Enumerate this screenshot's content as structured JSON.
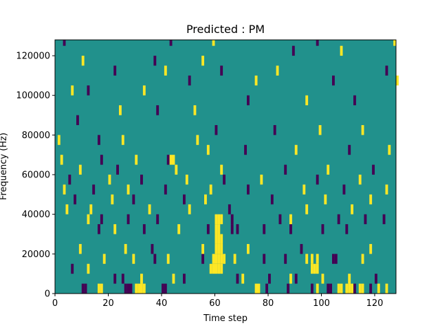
{
  "chart_data": {
    "type": "heatmap",
    "title": "Predicted : PM",
    "xlabel": "Time step",
    "ylabel": "Frequency (Hz)",
    "xlim": [
      0,
      128
    ],
    "ylim": [
      0,
      128000
    ],
    "x_ticks": [
      0,
      20,
      40,
      60,
      80,
      100,
      120
    ],
    "y_ticks": [
      0,
      20000,
      40000,
      60000,
      80000,
      100000,
      120000
    ],
    "x_tick_labels": [
      "0",
      "20",
      "40",
      "60",
      "80",
      "100",
      "120"
    ],
    "y_tick_labels": [
      "0",
      "20000",
      "40000",
      "60000",
      "80000",
      "100000",
      "120000"
    ],
    "grid": false,
    "legend": "none",
    "background_value": 0,
    "value_levels": [
      -1,
      0,
      1
    ],
    "colors": {
      "low": "#440154",
      "mid": "#21918c",
      "high": "#fde725"
    },
    "cells": [
      {
        "t": 16,
        "f": 0,
        "v": 1
      },
      {
        "t": 17,
        "f": 0,
        "v": 1
      },
      {
        "t": 30,
        "f": 0,
        "v": 1
      },
      {
        "t": 31,
        "f": 0,
        "v": 1
      },
      {
        "t": 32,
        "f": 0,
        "v": 1
      },
      {
        "t": 33,
        "f": 0,
        "v": 1
      },
      {
        "t": 26,
        "f": 0,
        "v": -1
      },
      {
        "t": 27,
        "f": 0,
        "v": -1
      },
      {
        "t": 28,
        "f": 0,
        "v": -1
      },
      {
        "t": 10,
        "f": 0,
        "v": -1
      },
      {
        "t": 11,
        "f": 0,
        "v": -1
      },
      {
        "t": 40,
        "f": 0,
        "v": -1
      },
      {
        "t": 41,
        "f": 0,
        "v": -1
      },
      {
        "t": 75,
        "f": 0,
        "v": 1
      },
      {
        "t": 76,
        "f": 0,
        "v": 1
      },
      {
        "t": 79,
        "f": 0,
        "v": -1
      },
      {
        "t": 87,
        "f": 0,
        "v": -1
      },
      {
        "t": 96,
        "f": 0,
        "v": -1
      },
      {
        "t": 98,
        "f": 0,
        "v": 1
      },
      {
        "t": 102,
        "f": 0,
        "v": -1
      },
      {
        "t": 103,
        "f": 0,
        "v": -1
      },
      {
        "t": 106,
        "f": 0,
        "v": 1
      },
      {
        "t": 107,
        "f": 0,
        "v": 1
      },
      {
        "t": 109,
        "f": 0,
        "v": 1
      },
      {
        "t": 110,
        "f": 0,
        "v": 1
      },
      {
        "t": 111,
        "f": 0,
        "v": 1
      },
      {
        "t": 112,
        "f": 0,
        "v": -1
      },
      {
        "t": 114,
        "f": 0,
        "v": 1
      },
      {
        "t": 115,
        "f": 0,
        "v": 1
      },
      {
        "t": 118,
        "f": 0,
        "v": -1
      },
      {
        "t": 121,
        "f": 0,
        "v": 1
      },
      {
        "t": 124,
        "f": 0,
        "v": 1
      },
      {
        "t": 58,
        "f": 10,
        "v": 1
      },
      {
        "t": 59,
        "f": 10,
        "v": 1
      },
      {
        "t": 60,
        "f": 10,
        "v": 1
      },
      {
        "t": 61,
        "f": 10,
        "v": 1
      },
      {
        "t": 62,
        "f": 10,
        "v": 1
      },
      {
        "t": 59,
        "f": 15,
        "v": 1
      },
      {
        "t": 60,
        "f": 15,
        "v": 1
      },
      {
        "t": 61,
        "f": 15,
        "v": 1
      },
      {
        "t": 62,
        "f": 15,
        "v": 1
      },
      {
        "t": 63,
        "f": 15,
        "v": 1
      },
      {
        "t": 60,
        "f": 20,
        "v": 1
      },
      {
        "t": 61,
        "f": 20,
        "v": 1
      },
      {
        "t": 62,
        "f": 20,
        "v": 1
      },
      {
        "t": 60,
        "f": 25,
        "v": 1
      },
      {
        "t": 61,
        "f": 25,
        "v": 1
      },
      {
        "t": 62,
        "f": 25,
        "v": 1
      },
      {
        "t": 60,
        "f": 30,
        "v": 1
      },
      {
        "t": 61,
        "f": 30,
        "v": 1
      },
      {
        "t": 60,
        "f": 35,
        "v": 1
      },
      {
        "t": 61,
        "f": 35,
        "v": 1
      },
      {
        "t": 62,
        "f": 35,
        "v": 1
      },
      {
        "t": 96,
        "f": 10,
        "v": 1
      },
      {
        "t": 97,
        "f": 10,
        "v": 1
      },
      {
        "t": 98,
        "f": 15,
        "v": 1
      },
      {
        "t": 98,
        "f": 10,
        "v": 1
      },
      {
        "t": 96,
        "f": 15,
        "v": 1
      },
      {
        "t": 104,
        "f": 15,
        "v": -1
      },
      {
        "t": 105,
        "f": 15,
        "v": -1
      },
      {
        "t": 22,
        "f": 5,
        "v": -1
      },
      {
        "t": 25,
        "f": 5,
        "v": -1
      },
      {
        "t": 32,
        "f": 5,
        "v": 1
      },
      {
        "t": 44,
        "f": 5,
        "v": 1
      },
      {
        "t": 48,
        "f": 5,
        "v": -1
      },
      {
        "t": 68,
        "f": 5,
        "v": -1
      },
      {
        "t": 70,
        "f": 5,
        "v": 1
      },
      {
        "t": 80,
        "f": 5,
        "v": -1
      },
      {
        "t": 88,
        "f": 5,
        "v": 1
      },
      {
        "t": 90,
        "f": 5,
        "v": -1
      },
      {
        "t": 100,
        "f": 5,
        "v": 1
      },
      {
        "t": 110,
        "f": 5,
        "v": 1
      },
      {
        "t": 120,
        "f": 5,
        "v": -1
      },
      {
        "t": 6,
        "f": 10,
        "v": -1
      },
      {
        "t": 12,
        "f": 10,
        "v": 1
      },
      {
        "t": 18,
        "f": 15,
        "v": 1
      },
      {
        "t": 29,
        "f": 15,
        "v": 1
      },
      {
        "t": 37,
        "f": 15,
        "v": -1
      },
      {
        "t": 42,
        "f": 15,
        "v": 1
      },
      {
        "t": 55,
        "f": 15,
        "v": -1
      },
      {
        "t": 67,
        "f": 15,
        "v": 1
      },
      {
        "t": 78,
        "f": 15,
        "v": -1
      },
      {
        "t": 86,
        "f": 15,
        "v": -1
      },
      {
        "t": 94,
        "f": 15,
        "v": 1
      },
      {
        "t": 115,
        "f": 15,
        "v": 1
      },
      {
        "t": 9,
        "f": 20,
        "v": 1
      },
      {
        "t": 26,
        "f": 20,
        "v": 1
      },
      {
        "t": 36,
        "f": 20,
        "v": -1
      },
      {
        "t": 55,
        "f": 20,
        "v": 1
      },
      {
        "t": 72,
        "f": 20,
        "v": 1
      },
      {
        "t": 92,
        "f": 20,
        "v": -1
      },
      {
        "t": 118,
        "f": 20,
        "v": 1
      },
      {
        "t": 16,
        "f": 30,
        "v": -1
      },
      {
        "t": 22,
        "f": 30,
        "v": 1
      },
      {
        "t": 33,
        "f": 30,
        "v": -1
      },
      {
        "t": 46,
        "f": 30,
        "v": 1
      },
      {
        "t": 57,
        "f": 30,
        "v": -1
      },
      {
        "t": 66,
        "f": 30,
        "v": -1
      },
      {
        "t": 68,
        "f": 30,
        "v": -1
      },
      {
        "t": 78,
        "f": 30,
        "v": -1
      },
      {
        "t": 88,
        "f": 30,
        "v": -1
      },
      {
        "t": 100,
        "f": 30,
        "v": -1
      },
      {
        "t": 109,
        "f": 30,
        "v": -1
      },
      {
        "t": 12,
        "f": 35,
        "v": 1
      },
      {
        "t": 17,
        "f": 35,
        "v": -1
      },
      {
        "t": 27,
        "f": 35,
        "v": -1
      },
      {
        "t": 38,
        "f": 35,
        "v": -1
      },
      {
        "t": 66,
        "f": 35,
        "v": -1
      },
      {
        "t": 84,
        "f": 35,
        "v": -1
      },
      {
        "t": 88,
        "f": 35,
        "v": 1
      },
      {
        "t": 106,
        "f": 35,
        "v": -1
      },
      {
        "t": 116,
        "f": 35,
        "v": -1
      },
      {
        "t": 123,
        "f": 35,
        "v": -1
      },
      {
        "t": 4,
        "f": 40,
        "v": 1
      },
      {
        "t": 13,
        "f": 40,
        "v": 1
      },
      {
        "t": 35,
        "f": 40,
        "v": 1
      },
      {
        "t": 50,
        "f": 40,
        "v": 1
      },
      {
        "t": 65,
        "f": 40,
        "v": -1
      },
      {
        "t": 94,
        "f": 40,
        "v": 1
      },
      {
        "t": 111,
        "f": 40,
        "v": 1
      },
      {
        "t": 7,
        "f": 45,
        "v": -1
      },
      {
        "t": 21,
        "f": 45,
        "v": 1
      },
      {
        "t": 29,
        "f": 45,
        "v": -1
      },
      {
        "t": 48,
        "f": 45,
        "v": -1
      },
      {
        "t": 56,
        "f": 45,
        "v": 1
      },
      {
        "t": 81,
        "f": 45,
        "v": -1
      },
      {
        "t": 101,
        "f": 45,
        "v": 1
      },
      {
        "t": 118,
        "f": 45,
        "v": 1
      },
      {
        "t": 3,
        "f": 50,
        "v": 1
      },
      {
        "t": 14,
        "f": 50,
        "v": -1
      },
      {
        "t": 27,
        "f": 50,
        "v": 1
      },
      {
        "t": 41,
        "f": 50,
        "v": -1
      },
      {
        "t": 58,
        "f": 50,
        "v": 1
      },
      {
        "t": 72,
        "f": 50,
        "v": -1
      },
      {
        "t": 93,
        "f": 50,
        "v": 1
      },
      {
        "t": 108,
        "f": 50,
        "v": -1
      },
      {
        "t": 124,
        "f": 50,
        "v": 1
      },
      {
        "t": 5,
        "f": 55,
        "v": -1
      },
      {
        "t": 20,
        "f": 55,
        "v": 1
      },
      {
        "t": 32,
        "f": 55,
        "v": -1
      },
      {
        "t": 49,
        "f": 55,
        "v": 1
      },
      {
        "t": 63,
        "f": 55,
        "v": -1
      },
      {
        "t": 77,
        "f": 55,
        "v": 1
      },
      {
        "t": 98,
        "f": 55,
        "v": -1
      },
      {
        "t": 114,
        "f": 55,
        "v": 1
      },
      {
        "t": 9,
        "f": 60,
        "v": 1
      },
      {
        "t": 23,
        "f": 60,
        "v": -1
      },
      {
        "t": 45,
        "f": 60,
        "v": 1
      },
      {
        "t": 62,
        "f": 60,
        "v": 1
      },
      {
        "t": 86,
        "f": 60,
        "v": -1
      },
      {
        "t": 102,
        "f": 60,
        "v": 1
      },
      {
        "t": 119,
        "f": 60,
        "v": -1
      },
      {
        "t": 2,
        "f": 65,
        "v": 1
      },
      {
        "t": 17,
        "f": 65,
        "v": -1
      },
      {
        "t": 30,
        "f": 65,
        "v": 1
      },
      {
        "t": 42,
        "f": 65,
        "v": -1
      },
      {
        "t": 43,
        "f": 65,
        "v": 1
      },
      {
        "t": 44,
        "f": 65,
        "v": 1
      },
      {
        "t": 57,
        "f": 70,
        "v": 1
      },
      {
        "t": 71,
        "f": 70,
        "v": -1
      },
      {
        "t": 90,
        "f": 70,
        "v": 1
      },
      {
        "t": 110,
        "f": 70,
        "v": -1
      },
      {
        "t": 125,
        "f": 70,
        "v": 1
      },
      {
        "t": 1,
        "f": 75,
        "v": 1
      },
      {
        "t": 16,
        "f": 75,
        "v": -1
      },
      {
        "t": 25,
        "f": 75,
        "v": 1
      },
      {
        "t": 53,
        "f": 75,
        "v": 1
      },
      {
        "t": 60,
        "f": 80,
        "v": -1
      },
      {
        "t": 82,
        "f": 80,
        "v": -1
      },
      {
        "t": 99,
        "f": 80,
        "v": 1
      },
      {
        "t": 115,
        "f": 80,
        "v": 1
      },
      {
        "t": 8,
        "f": 85,
        "v": -1
      },
      {
        "t": 24,
        "f": 90,
        "v": 1
      },
      {
        "t": 38,
        "f": 90,
        "v": -1
      },
      {
        "t": 52,
        "f": 90,
        "v": 1
      },
      {
        "t": 72,
        "f": 95,
        "v": -1
      },
      {
        "t": 94,
        "f": 95,
        "v": 1
      },
      {
        "t": 112,
        "f": 95,
        "v": -1
      },
      {
        "t": 6,
        "f": 100,
        "v": 1
      },
      {
        "t": 12,
        "f": 100,
        "v": -1
      },
      {
        "t": 33,
        "f": 100,
        "v": 1
      },
      {
        "t": 50,
        "f": 105,
        "v": -1
      },
      {
        "t": 75,
        "f": 105,
        "v": 1
      },
      {
        "t": 104,
        "f": 105,
        "v": -1
      },
      {
        "t": 128,
        "f": 105,
        "v": 1
      },
      {
        "t": 22,
        "f": 110,
        "v": -1
      },
      {
        "t": 41,
        "f": 110,
        "v": 1
      },
      {
        "t": 62,
        "f": 110,
        "v": -1
      },
      {
        "t": 83,
        "f": 110,
        "v": 1
      },
      {
        "t": 124,
        "f": 110,
        "v": -1
      },
      {
        "t": 10,
        "f": 115,
        "v": 1
      },
      {
        "t": 37,
        "f": 115,
        "v": -1
      },
      {
        "t": 55,
        "f": 115,
        "v": 1
      },
      {
        "t": 89,
        "f": 120,
        "v": -1
      },
      {
        "t": 107,
        "f": 120,
        "v": 1
      },
      {
        "t": 3,
        "f": 125,
        "v": -1
      },
      {
        "t": 43,
        "f": 125,
        "v": -1
      },
      {
        "t": 59,
        "f": 125,
        "v": 1
      },
      {
        "t": 98,
        "f": 125,
        "v": -1
      },
      {
        "t": 127,
        "f": 125,
        "v": 1
      }
    ]
  }
}
